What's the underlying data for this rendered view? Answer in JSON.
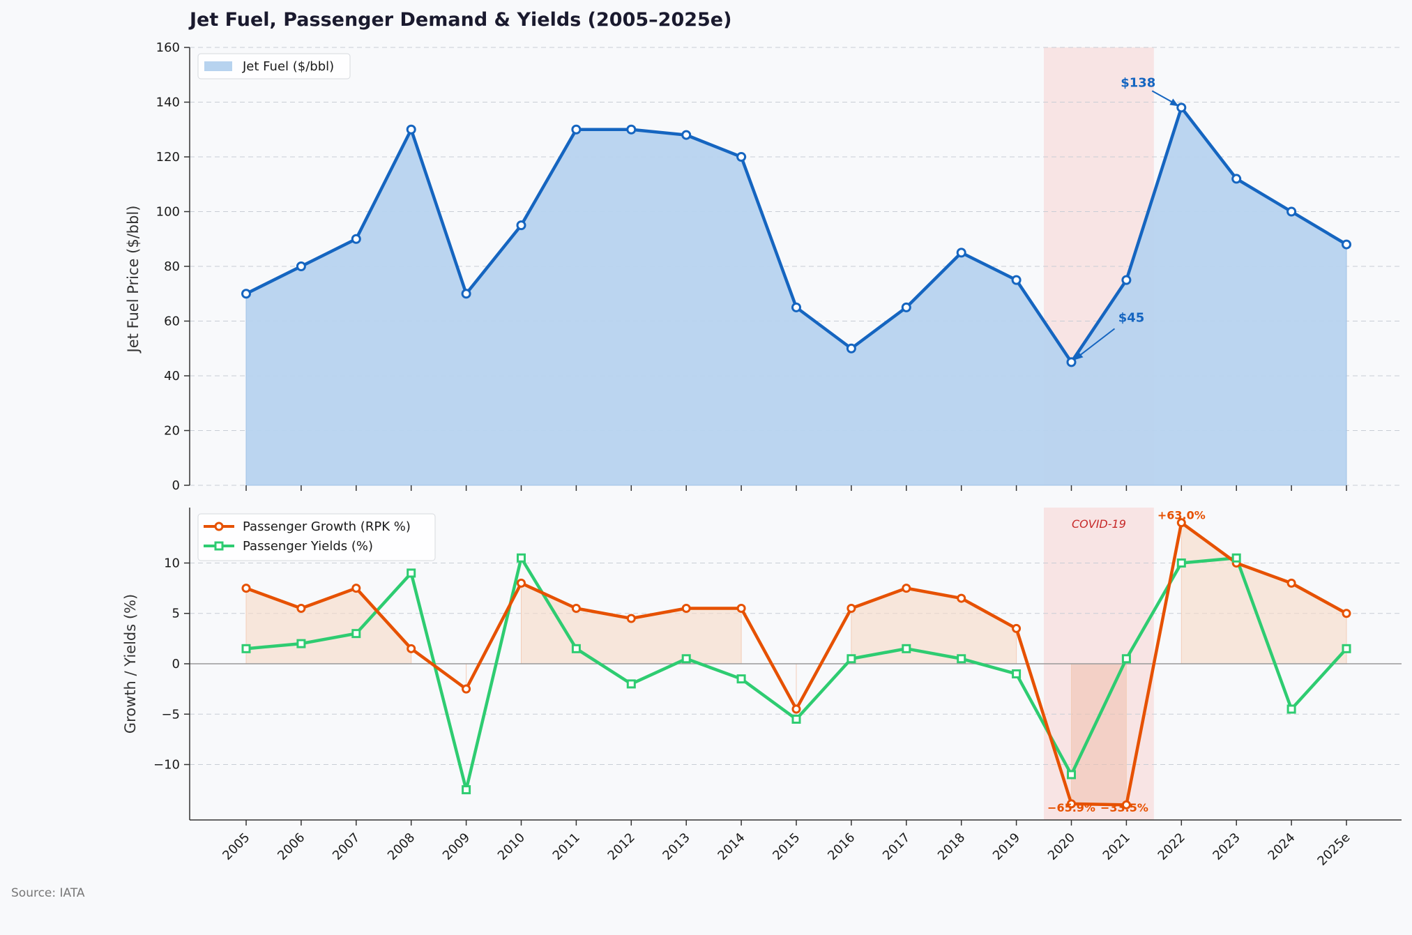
{
  "title": "Jet Fuel, Passenger Demand & Yields  (2005–2025e)",
  "source": "Source: IATA",
  "colors": {
    "fuel_line": "#1565c0",
    "fuel_fill": "#b7d3ef",
    "growth": "#e65100",
    "yields": "#2ecc71",
    "covid_band": "#f8dcdc",
    "background": "#f8f9fb"
  },
  "annotations": {
    "fuel_peak": "$138",
    "fuel_low": "$45",
    "growth_peak": "+63.0%",
    "growth_low_2020": "−65.9%",
    "growth_low_2021": "−33.5%",
    "covid": "COVID-19"
  },
  "chart_data": [
    {
      "type": "area",
      "title": "Jet Fuel, Passenger Demand & Yields  (2005–2025e)",
      "ylabel": "Jet Fuel Price ($/bbl)",
      "ylim": [
        0,
        160
      ],
      "yticks": [
        0,
        20,
        40,
        60,
        80,
        100,
        120,
        140,
        160
      ],
      "grid": true,
      "legend_position": "top-left",
      "categories": [
        "2005",
        "2006",
        "2007",
        "2008",
        "2009",
        "2010",
        "2011",
        "2012",
        "2013",
        "2014",
        "2015",
        "2016",
        "2017",
        "2018",
        "2019",
        "2020",
        "2021",
        "2022",
        "2023",
        "2024",
        "2025e"
      ],
      "series": [
        {
          "name": "Jet Fuel ($/bbl)",
          "values": [
            70,
            80,
            90,
            130,
            70,
            95,
            130,
            130,
            128,
            120,
            65,
            50,
            65,
            85,
            75,
            45,
            75,
            138,
            112,
            100,
            88
          ]
        }
      ],
      "highlight_band": [
        "2020",
        "2021"
      ]
    },
    {
      "type": "line",
      "ylabel": "Growth / Yields (%)",
      "xlabel": "",
      "ylim": [
        -15.5,
        15.5
      ],
      "yticks": [
        -10,
        -5,
        0,
        5,
        10
      ],
      "grid": true,
      "legend_position": "top-left",
      "categories": [
        "2005",
        "2006",
        "2007",
        "2008",
        "2009",
        "2010",
        "2011",
        "2012",
        "2013",
        "2014",
        "2015",
        "2016",
        "2017",
        "2018",
        "2019",
        "2020",
        "2021",
        "2022",
        "2023",
        "2024",
        "2025e"
      ],
      "series": [
        {
          "name": "Passenger Growth (RPK %)",
          "values": [
            7.5,
            5.5,
            7.5,
            1.5,
            -2.5,
            8.0,
            5.5,
            4.5,
            5.5,
            5.5,
            -4.5,
            5.5,
            7.5,
            6.5,
            3.5,
            -13.9,
            -14.0,
            14.0,
            10.0,
            8.0,
            5.0
          ]
        },
        {
          "name": "Passenger Yields (%)",
          "values": [
            1.5,
            2.0,
            3.0,
            9.0,
            -12.5,
            10.5,
            1.5,
            -2.0,
            0.5,
            -1.5,
            -5.5,
            0.5,
            1.5,
            0.5,
            -1.0,
            -11.0,
            0.5,
            10.0,
            10.5,
            -4.5,
            1.5
          ]
        }
      ],
      "annotations": [
        "+63.0%",
        "−65.9%",
        "−33.5%",
        "COVID-19"
      ],
      "highlight_band": [
        "2020",
        "2021"
      ]
    }
  ]
}
